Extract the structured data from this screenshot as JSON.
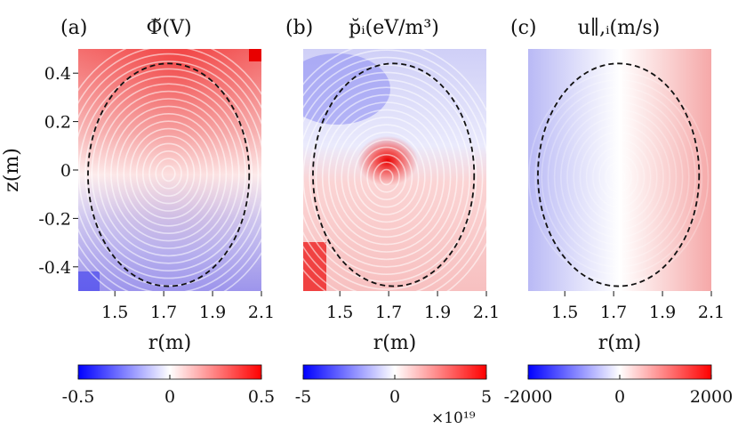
{
  "figure": {
    "colors": {
      "negative": "#0000ff",
      "zero": "#ffffff",
      "positive": "#ff0000",
      "separatrix": "#111111"
    }
  },
  "chart_data": [
    {
      "type": "heatmap",
      "panel_label": "(a)",
      "title": "Φ̆(V)",
      "xlabel": "r(m)",
      "ylabel": "z(m)",
      "xlim": [
        1.35,
        2.1
      ],
      "ylim": [
        -0.5,
        0.5
      ],
      "xticks": [
        "1.5",
        "1.7",
        "1.9",
        "2.1"
      ],
      "yticks": [
        "0.4",
        "0.2",
        "0",
        "-0.2",
        "-0.4"
      ],
      "colorbar": {
        "min": -0.5,
        "max": 0.5,
        "ticks": [
          "-0.5",
          "0",
          "0.5"
        ],
        "multiplier": ""
      },
      "field": "up-down antisymmetric potential with concentric ripple pattern",
      "separatrix": {
        "center_r": 1.72,
        "center_z": -0.02,
        "half_width_r": 0.33,
        "half_height_z": 0.46
      }
    },
    {
      "type": "heatmap",
      "panel_label": "(b)",
      "title": "p̆ᵢ(eV/m³)",
      "xlabel": "r(m)",
      "ylabel": "",
      "xlim": [
        1.35,
        2.1
      ],
      "ylim": [
        -0.5,
        0.5
      ],
      "xticks": [
        "1.5",
        "1.7",
        "1.9",
        "2.1"
      ],
      "yticks": [],
      "colorbar": {
        "min": -5,
        "max": 5,
        "ticks": [
          "-5",
          "0",
          "5"
        ],
        "multiplier": "×10¹⁹"
      },
      "field": "pressure fluctuation peaked near core with concentric rings",
      "separatrix": {
        "center_r": 1.72,
        "center_z": -0.02,
        "half_width_r": 0.33,
        "half_height_z": 0.46
      }
    },
    {
      "type": "heatmap",
      "panel_label": "(c)",
      "title": "u∥,ᵢ(m/s)",
      "xlabel": "r(m)",
      "ylabel": "",
      "xlim": [
        1.35,
        2.1
      ],
      "ylim": [
        -0.5,
        0.5
      ],
      "xticks": [
        "1.5",
        "1.7",
        "1.9",
        "2.1"
      ],
      "yticks": [],
      "colorbar": {
        "min": -2000,
        "max": 2000,
        "ticks": [
          "-2000",
          "0",
          "2000"
        ],
        "multiplier": ""
      },
      "field": "parallel ion velocity, negative on inboard side and positive on outboard side",
      "separatrix": {
        "center_r": 1.72,
        "center_z": -0.02,
        "half_width_r": 0.33,
        "half_height_z": 0.46
      }
    }
  ]
}
